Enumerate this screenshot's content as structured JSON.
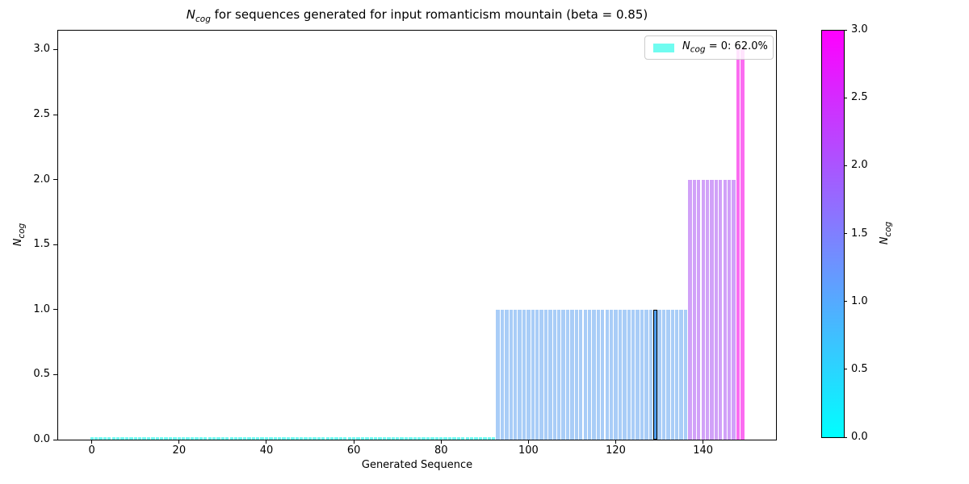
{
  "chart_data": {
    "type": "bar",
    "title": "N_cog for sequences generated for input romanticism mountain (beta = 0.85)",
    "xlabel": "Generated Sequence",
    "ylabel": "N_cog",
    "grid": false,
    "legend_position": "upper right",
    "legend": [
      {
        "label": "N_cog = 0: 62.0%",
        "swatch_color": "#70fcf0"
      }
    ],
    "n_bars": 150,
    "segments": [
      {
        "from_index": 0,
        "to_index": 92,
        "value": 0
      },
      {
        "from_index": 93,
        "to_index": 136,
        "value": 1
      },
      {
        "from_index": 137,
        "to_index": 147,
        "value": 2
      },
      {
        "from_index": 148,
        "to_index": 149,
        "value": 3
      }
    ],
    "highlighted_bar_index": 129,
    "x_ticks": [
      0,
      20,
      40,
      60,
      80,
      100,
      120,
      140
    ],
    "x_tick_labels": [
      "0",
      "20",
      "40",
      "60",
      "80",
      "100",
      "120",
      "140"
    ],
    "y_ticks": [
      0,
      0.5,
      1,
      1.5,
      2,
      2.5,
      3
    ],
    "y_tick_labels": [
      "0.0",
      "0.5",
      "1.0",
      "1.5",
      "2.0",
      "2.5",
      "3.0"
    ],
    "xlim": [
      -7.9,
      156.9
    ],
    "ylim": [
      0,
      3.16
    ],
    "colors": {
      "value_0": "#70fcf0",
      "value_1": "#a9cdf7",
      "value_2": "#d1a1f8",
      "value_3": "#fb6cf1",
      "highlight_fill": "#4f9ef0",
      "highlight_edge": "#000000"
    },
    "colorbar": {
      "label": "N_cog",
      "colormap": "cool",
      "min": 0,
      "max": 3,
      "ticks": [
        0,
        0.5,
        1,
        1.5,
        2,
        2.5,
        3
      ],
      "tick_labels": [
        "0.0",
        "0.5",
        "1.0",
        "1.5",
        "2.0",
        "2.5",
        "3.0"
      ],
      "min_color": "#00ffff",
      "max_color": "#ff00ff"
    }
  },
  "labels": {
    "math_n": "N",
    "math_sub": "cog",
    "title_rest": " for sequences generated for input romanticism mountain (beta = 0.85)",
    "legend_rest": " = 0: 62.0%"
  }
}
